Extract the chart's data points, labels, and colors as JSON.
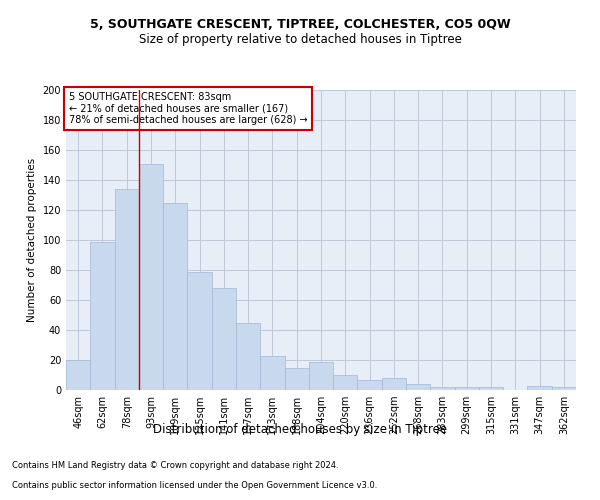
{
  "title": "5, SOUTHGATE CRESCENT, TIPTREE, COLCHESTER, CO5 0QW",
  "subtitle": "Size of property relative to detached houses in Tiptree",
  "xlabel": "Distribution of detached houses by size in Tiptree",
  "ylabel": "Number of detached properties",
  "categories": [
    "46sqm",
    "62sqm",
    "78sqm",
    "93sqm",
    "109sqm",
    "125sqm",
    "141sqm",
    "157sqm",
    "173sqm",
    "188sqm",
    "204sqm",
    "220sqm",
    "236sqm",
    "252sqm",
    "268sqm",
    "283sqm",
    "299sqm",
    "315sqm",
    "331sqm",
    "347sqm",
    "362sqm"
  ],
  "values": [
    20,
    99,
    134,
    151,
    125,
    79,
    68,
    45,
    23,
    15,
    19,
    10,
    7,
    8,
    4,
    2,
    2,
    2,
    0,
    3,
    2
  ],
  "bar_color": "#c9d9ed",
  "bar_edge_color": "#a0b8d8",
  "grid_color": "#c0c8d8",
  "background_color": "#e8eef8",
  "annotation_title": "5 SOUTHGATE CRESCENT: 83sqm",
  "annotation_line1": "← 21% of detached houses are smaller (167)",
  "annotation_line2": "78% of semi-detached houses are larger (628) →",
  "annotation_box_color": "#ffffff",
  "annotation_box_edge": "#cc0000",
  "line_color": "#cc0000",
  "ylim": [
    0,
    200
  ],
  "yticks": [
    0,
    20,
    40,
    60,
    80,
    100,
    120,
    140,
    160,
    180,
    200
  ],
  "footer1": "Contains HM Land Registry data © Crown copyright and database right 2024.",
  "footer2": "Contains public sector information licensed under the Open Government Licence v3.0.",
  "title_fontsize": 9,
  "subtitle_fontsize": 8.5,
  "xlabel_fontsize": 8.5,
  "ylabel_fontsize": 7.5,
  "tick_fontsize": 7,
  "annotation_fontsize": 7,
  "footer_fontsize": 6
}
